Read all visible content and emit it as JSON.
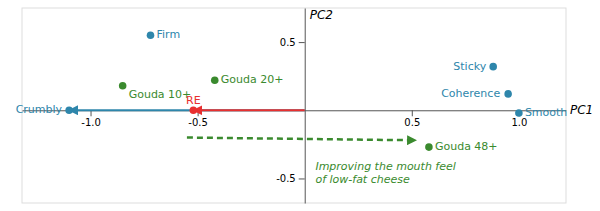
{
  "chart_data": {
    "type": "scatter",
    "x_label": "PC1",
    "y_label": "PC2",
    "xlim": [
      -1.32,
      1.22
    ],
    "ylim": [
      -0.68,
      0.75
    ],
    "xticks": [
      {
        "value": -1.0,
        "label": "-1.0"
      },
      -0.5,
      0.5,
      {
        "value": 1.0,
        "label": "1.0"
      }
    ],
    "yticks": [
      -0.5,
      0.5
    ],
    "grid": false,
    "series": [
      {
        "color": "#2E86AB",
        "marker": "circle",
        "labels": [
          "Crumbly",
          "Firm",
          "Sticky",
          "Coherence",
          "Smooth"
        ],
        "x": [
          -1.1,
          -0.72,
          0.88,
          0.95,
          1.0
        ],
        "values": [
          0.0,
          0.55,
          0.32,
          0.12,
          -0.02
        ]
      },
      {
        "color": "#3A8A2E",
        "marker": "circle",
        "labels": [
          "Gouda 10+",
          "Gouda 20+",
          "Gouda 48+"
        ],
        "x": [
          -0.85,
          -0.42,
          0.58
        ],
        "values": [
          0.18,
          0.22,
          -0.27
        ]
      },
      {
        "color": "#E83030",
        "marker": "circle",
        "labels": [
          "RE"
        ],
        "x": [
          -0.52
        ],
        "values": [
          0.0
        ]
      }
    ],
    "arrows": [
      {
        "start": [
          0.0,
          0.0
        ],
        "end": [
          -1.1,
          0.0
        ],
        "color": "#2E86AB",
        "line_style": "solid"
      },
      {
        "start": [
          0.0,
          0.0
        ],
        "end": [
          -0.52,
          0.0
        ],
        "color": "#E83030",
        "line_style": "solid"
      },
      {
        "start": [
          -0.55,
          -0.2
        ],
        "end": [
          0.52,
          -0.22
        ],
        "color": "#3A8A2E",
        "line_style": "dashed"
      }
    ],
    "annotation": {
      "text": "Improving the mouth feel\nof low-fat cheese",
      "x": 0.05,
      "y": -0.38,
      "color": "#3A8A2E"
    }
  }
}
